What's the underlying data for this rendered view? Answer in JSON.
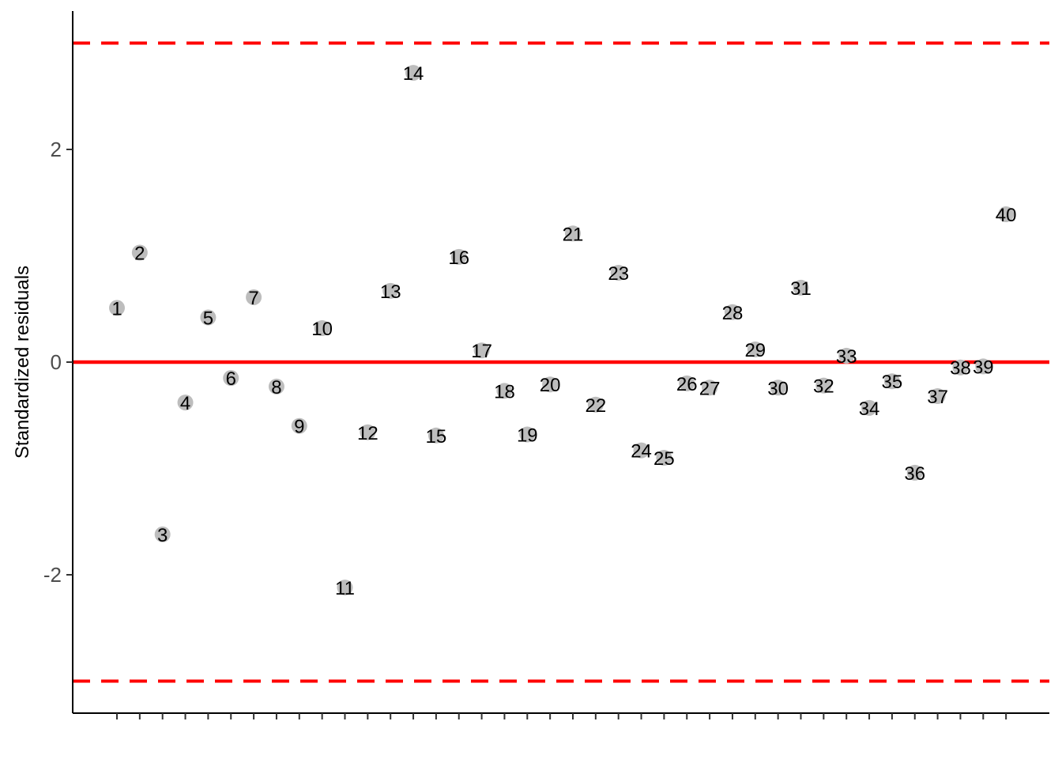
{
  "chart_data": {
    "type": "scatter",
    "title": "",
    "xlabel": "",
    "ylabel": "Standardized residuals",
    "ylim": [
      -3.3,
      3.3
    ],
    "xlim": [
      -1,
      42
    ],
    "yticks": [
      -2,
      0,
      2
    ],
    "ytick_labels": [
      "-2",
      "0",
      "2"
    ],
    "grid": false,
    "reference_lines": [
      {
        "y": 0,
        "style": "solid",
        "color": "#ff0000"
      },
      {
        "y": 3,
        "style": "dashed",
        "color": "#ff0000"
      },
      {
        "y": -3,
        "style": "dashed",
        "color": "#ff0000"
      }
    ],
    "point_color": "#bdbdbd",
    "points": [
      {
        "x": 1,
        "y": 0.51,
        "label": "1"
      },
      {
        "x": 2,
        "y": 1.03,
        "label": "2"
      },
      {
        "x": 3,
        "y": -1.62,
        "label": "3"
      },
      {
        "x": 4,
        "y": -0.38,
        "label": "4"
      },
      {
        "x": 5,
        "y": 0.42,
        "label": "5"
      },
      {
        "x": 6,
        "y": -0.15,
        "label": "6"
      },
      {
        "x": 7,
        "y": 0.61,
        "label": "7"
      },
      {
        "x": 8,
        "y": -0.23,
        "label": "8"
      },
      {
        "x": 9,
        "y": -0.6,
        "label": "9"
      },
      {
        "x": 10,
        "y": 0.32,
        "label": "10"
      },
      {
        "x": 11,
        "y": -2.12,
        "label": "11"
      },
      {
        "x": 12,
        "y": -0.66,
        "label": "12"
      },
      {
        "x": 13,
        "y": 0.67,
        "label": "13"
      },
      {
        "x": 14,
        "y": 2.72,
        "label": "14"
      },
      {
        "x": 15,
        "y": -0.69,
        "label": "15"
      },
      {
        "x": 16,
        "y": 0.99,
        "label": "16"
      },
      {
        "x": 17,
        "y": 0.11,
        "label": "17"
      },
      {
        "x": 18,
        "y": -0.27,
        "label": "18"
      },
      {
        "x": 19,
        "y": -0.68,
        "label": "19"
      },
      {
        "x": 20,
        "y": -0.21,
        "label": "20"
      },
      {
        "x": 21,
        "y": 1.21,
        "label": "21"
      },
      {
        "x": 22,
        "y": -0.4,
        "label": "22"
      },
      {
        "x": 23,
        "y": 0.84,
        "label": "23"
      },
      {
        "x": 24,
        "y": -0.83,
        "label": "24"
      },
      {
        "x": 25,
        "y": -0.9,
        "label": "25"
      },
      {
        "x": 26,
        "y": -0.2,
        "label": "26"
      },
      {
        "x": 27,
        "y": -0.24,
        "label": "27"
      },
      {
        "x": 28,
        "y": 0.47,
        "label": "28"
      },
      {
        "x": 29,
        "y": 0.12,
        "label": "29"
      },
      {
        "x": 30,
        "y": -0.24,
        "label": "30"
      },
      {
        "x": 31,
        "y": 0.7,
        "label": "31"
      },
      {
        "x": 32,
        "y": -0.22,
        "label": "32"
      },
      {
        "x": 33,
        "y": 0.06,
        "label": "33"
      },
      {
        "x": 34,
        "y": -0.43,
        "label": "34"
      },
      {
        "x": 35,
        "y": -0.18,
        "label": "35"
      },
      {
        "x": 36,
        "y": -1.04,
        "label": "36"
      },
      {
        "x": 37,
        "y": -0.32,
        "label": "37"
      },
      {
        "x": 38,
        "y": -0.05,
        "label": "38"
      },
      {
        "x": 39,
        "y": -0.04,
        "label": "39"
      },
      {
        "x": 40,
        "y": 1.39,
        "label": "40"
      }
    ]
  }
}
